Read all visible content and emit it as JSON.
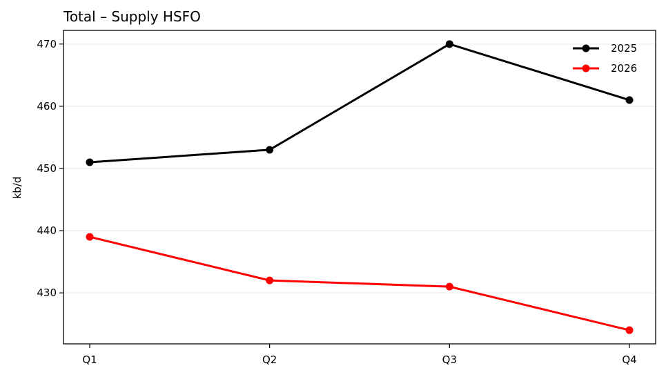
{
  "chart_data": {
    "type": "line",
    "title": "Total – Supply HSFO",
    "xlabel": "",
    "ylabel": "kb/d",
    "categories": [
      "Q1",
      "Q2",
      "Q3",
      "Q4"
    ],
    "series": [
      {
        "name": "2025",
        "color": "#000000",
        "values": [
          451,
          453,
          470,
          461
        ]
      },
      {
        "name": "2026",
        "color": "#ff0000",
        "values": [
          439,
          432,
          431,
          424
        ]
      }
    ],
    "ylim": [
      421.8,
      472.2
    ],
    "yticks": [
      430,
      440,
      450,
      460,
      470
    ],
    "grid": "horizontal",
    "legend": "top-right"
  }
}
